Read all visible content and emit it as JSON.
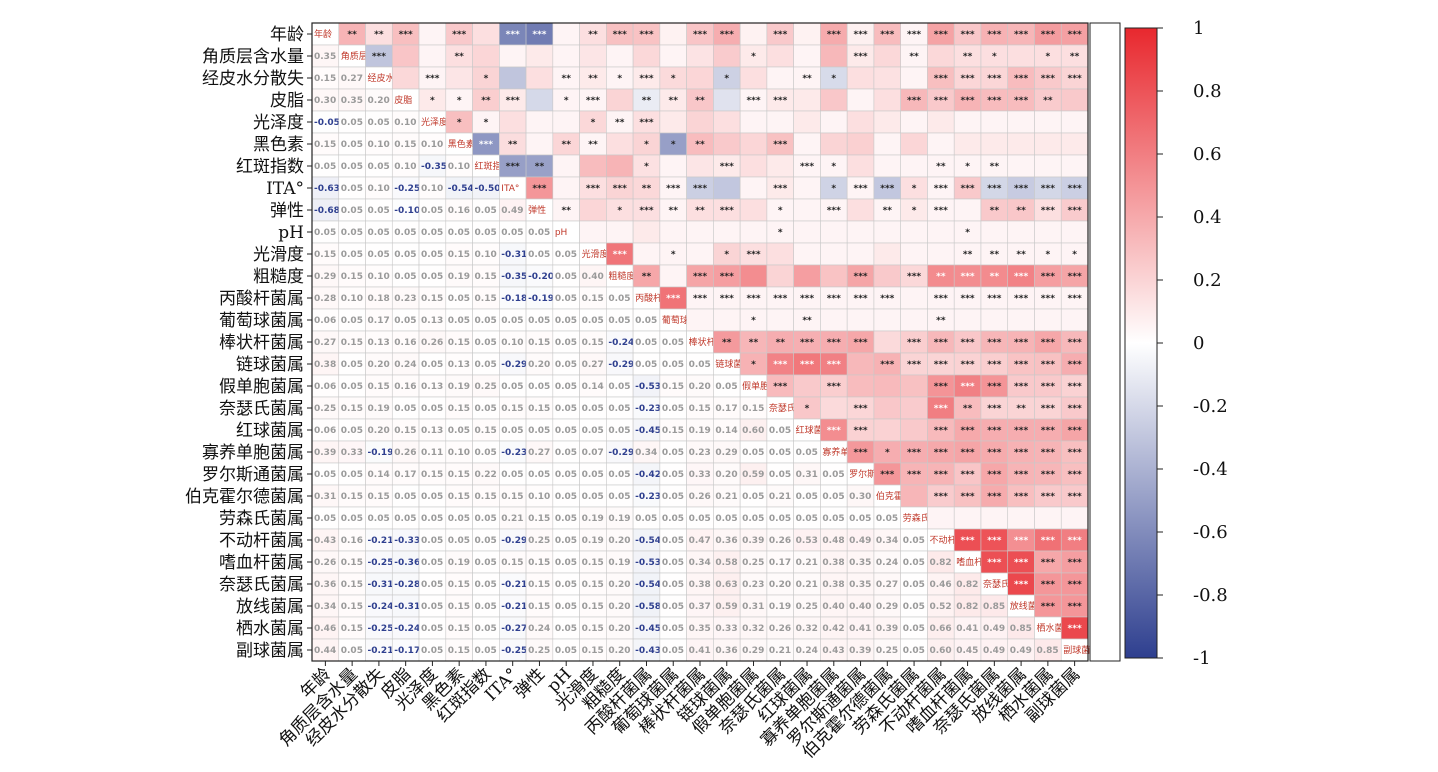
{
  "chart_data": {
    "type": "heatmap",
    "title": "",
    "variables": [
      "年龄",
      "角质层含水量",
      "经皮水分散失",
      "皮脂",
      "光泽度",
      "黑色素",
      "红斑指数",
      "ITA°",
      "弹性",
      "pH",
      "光滑度",
      "粗糙度",
      "丙酸杆菌属",
      "葡萄球菌属",
      "棒状杆菌属",
      "链球菌属",
      "假单胞菌属",
      "奈瑟氏菌属",
      "红球菌属",
      "寡养单胞菌属",
      "罗尔斯通菌属",
      "伯克霍尔德菌属",
      "劳森氏菌属",
      "不动杆菌属",
      "嗜血杆菌属",
      "奈瑟氏菌属",
      "放线菌属",
      "栖水菌属",
      "副球菌属"
    ],
    "colorbar": {
      "range": [
        -1,
        1
      ],
      "ticks": [
        "1",
        "0.8",
        "0.6",
        "0.4",
        "0.2",
        "0",
        "-0.2",
        "-0.4",
        "-0.6",
        "-0.8",
        "-1"
      ],
      "colors": {
        "negative": "#2e3f8f",
        "zero": "#ffffff",
        "positive": "#e8282e"
      }
    },
    "upper_triangle_values": [
      [
        0.35,
        0.15,
        0.3,
        0.05,
        0.25,
        0.15,
        -0.63,
        -0.68,
        0.05,
        0.15,
        0.29,
        0.28,
        0.06,
        0.27,
        0.38,
        0.06,
        0.25,
        0.06,
        0.39,
        0.07,
        0.31,
        0.05,
        0.43,
        0.26,
        0.36,
        0.34,
        0.46,
        0.44
      ],
      [
        -0.3,
        0.27,
        0.05,
        0.15,
        0.19,
        0.05,
        0.1,
        0.05,
        0.12,
        0.05,
        0.18,
        0.05,
        0.13,
        0.24,
        0.1,
        0.15,
        0.05,
        0.33,
        0.1,
        0.18,
        0.05,
        0.18,
        0.15,
        0.15,
        0.15,
        0.15,
        0.15
      ],
      [
        0.18,
        0.05,
        0.12,
        0.2,
        -0.3,
        0.15,
        0.05,
        0.1,
        0.05,
        0.1,
        0.17,
        0.19,
        -0.24,
        0.15,
        0.05,
        0.05,
        -0.19,
        0.15,
        0.14,
        0.05,
        0.3,
        0.19,
        0.19,
        0.31,
        0.25,
        0.2
      ],
      [
        0.1,
        0.05,
        0.23,
        0.1,
        -0.2,
        0.05,
        0.05,
        0.2,
        -0.1,
        0.1,
        0.26,
        -0.15,
        0.05,
        0.1,
        0.1,
        0.26,
        0.05,
        0.15,
        0.33,
        0.25,
        0.35,
        0.31,
        0.31,
        0.24,
        0.25
      ],
      [
        0.3,
        0.05,
        0.15,
        0.05,
        0.05,
        0.18,
        0.05,
        0.15,
        0.1,
        0.2,
        0.15,
        0.05,
        0.05,
        0.1,
        0.05,
        0.15,
        0.1,
        0.05,
        0.1,
        0.05,
        0.05,
        0.05,
        0.05,
        0.05
      ],
      [
        -0.54,
        0.16,
        0.05,
        0.19,
        0.05,
        0.15,
        0.2,
        -0.5,
        0.31,
        0.25,
        0.19,
        0.29,
        0.05,
        0.2,
        0.22,
        0.05,
        0.19,
        0.05,
        0.1,
        0.1,
        0.1,
        0.1,
        0.1
      ],
      [
        -0.5,
        -0.49,
        0.05,
        0.31,
        0.35,
        0.14,
        0.05,
        0.12,
        0.1,
        0.15,
        0.1,
        0.05,
        0.05,
        0.15,
        0.05,
        0.05,
        0.05,
        0.05,
        0.05,
        0.05,
        0.05,
        0.05
      ],
      [
        0.49,
        0.05,
        0.15,
        0.2,
        0.18,
        0.05,
        -0.25,
        -0.29,
        0.05,
        0.1,
        0.05,
        -0.23,
        0.05,
        -0.29,
        0.15,
        0.05,
        0.25,
        -0.21,
        -0.27,
        -0.21,
        -0.25,
        -0.25
      ],
      [
        0.05,
        0.19,
        0.15,
        0.15,
        0.05,
        0.15,
        0.15,
        0.15,
        0.05,
        0.05,
        0.05,
        0.15,
        0.05,
        0.1,
        0.05,
        0.05,
        0.25,
        0.26,
        0.15,
        0.24,
        0.05
      ],
      [
        0.05,
        0.05,
        0.1,
        0.05,
        0.05,
        0.05,
        0.05,
        0.05,
        0.05,
        0.05,
        0.05,
        0.05,
        0.05,
        0.05,
        0.05,
        0.05,
        0.05,
        0.05,
        0.05,
        0.05
      ],
      [
        0.64,
        0.05,
        0.05,
        0.05,
        0.2,
        0.15,
        0.15,
        0.05,
        0.05,
        0.05,
        0.1,
        0.05,
        0.05,
        0.05,
        0.05,
        0.05,
        0.05,
        0.05,
        0.05
      ],
      [
        0.41,
        0.05,
        0.42,
        0.45,
        0.53,
        0.2,
        0.45,
        0.28,
        0.42,
        0.25,
        0.18,
        0.54,
        0.53,
        0.54,
        0.58,
        0.45,
        0.42
      ],
      [
        0.65,
        0.05,
        0.05,
        0.05,
        0.05,
        0.05,
        0.05,
        0.05,
        0.05,
        0.05,
        0.05,
        0.05,
        0.05,
        0.05,
        0.05,
        0.05
      ],
      [
        0.05,
        0.05,
        0.05,
        0.05,
        0.05,
        0.05,
        0.05,
        0.05,
        0.05,
        0.05,
        0.05,
        0.05,
        0.05,
        0.05,
        0.05
      ],
      [
        0.47,
        0.34,
        0.38,
        0.37,
        0.38,
        0.41,
        0.17,
        0.23,
        0.33,
        0.26,
        0.34,
        0.35,
        0.41,
        0.33,
        0.31
      ],
      [
        0.36,
        0.58,
        0.63,
        0.59,
        0.33,
        0.36,
        0.2,
        0.2,
        0.21,
        0.23,
        0.28,
        0.29,
        0.38,
        0.21,
        0.23
      ],
      [
        0.32,
        0.25,
        0.23,
        0.31,
        0.32,
        0.29,
        0.5,
        0.59,
        0.5,
        0.25,
        0.25,
        0.21,
        0.21,
        0.2
      ],
      [
        0.26,
        0.17,
        0.19,
        0.26,
        0.24,
        0.6,
        0.31,
        0.2,
        0.2,
        0.2,
        0.25,
        0.24,
        0.25
      ],
      [
        0.53,
        0.21,
        0.21,
        0.25,
        0.32,
        0.4,
        0.38,
        0.38,
        0.38,
        0.42,
        0.43
      ],
      [
        0.48,
        0.38,
        0.38,
        0.4,
        0.42,
        0.39,
        0.36,
        0.35,
        0.3,
        0.3
      ],
      [
        0.49,
        0.35,
        0.35,
        0.27,
        0.41,
        0.35,
        0.34,
        0.3,
        0.25
      ],
      [
        0.34,
        0.24,
        0.29,
        0.39,
        0.3,
        0.25,
        0.25,
        0.24
      ],
      [
        0.05,
        0.05,
        0.05,
        0.05,
        0.05,
        0.05,
        0.05
      ],
      [
        0.82,
        0.8,
        0.52,
        0.66,
        0.6,
        0.6
      ],
      [
        0.82,
        0.82,
        0.41,
        0.45,
        0.45
      ],
      [
        0.85,
        0.49,
        0.49,
        0.49
      ],
      [
        0.49,
        0.49,
        0.49
      ],
      [
        0.85,
        0.85
      ],
      [
        0.85
      ]
    ],
    "lower_triangle_values": [
      [
        0.35
      ],
      [
        0.15,
        0.27
      ],
      [
        0.3,
        0.35,
        0.2
      ],
      [
        -0.05,
        0.05,
        0.05,
        0.1
      ],
      [
        0.15,
        0.05,
        0.1,
        0.15,
        0.1
      ],
      [
        0.05,
        0.05,
        0.05,
        0.1,
        -0.35,
        0.1
      ],
      [
        -0.63,
        0.05,
        0.1,
        -0.25,
        0.1,
        -0.54,
        -0.5
      ],
      [
        -0.68,
        0.05,
        0.05,
        -0.1,
        0.05,
        0.16,
        0.05,
        0.49
      ],
      [
        0.05,
        0.05,
        0.05,
        0.05,
        0.05,
        0.05,
        0.05,
        0.05,
        0.05
      ],
      [
        0.15,
        0.05,
        0.05,
        0.05,
        0.05,
        0.15,
        0.1,
        -0.31,
        0.05,
        0.05
      ],
      [
        0.29,
        0.15,
        0.1,
        0.05,
        0.05,
        0.19,
        0.15,
        -0.35,
        -0.2,
        0.05,
        0.4
      ],
      [
        0.28,
        0.1,
        0.18,
        0.23,
        0.15,
        0.05,
        0.15,
        -0.18,
        -0.19,
        0.05,
        0.15,
        0.05
      ],
      [
        0.06,
        0.05,
        0.17,
        0.05,
        0.13,
        0.05,
        0.05,
        0.05,
        0.05,
        0.05,
        0.05,
        0.05,
        0.05
      ],
      [
        0.27,
        0.15,
        0.13,
        0.16,
        0.26,
        0.15,
        0.05,
        0.1,
        0.15,
        0.05,
        0.15,
        -0.24,
        0.05,
        0.05
      ],
      [
        0.38,
        0.05,
        0.2,
        0.24,
        0.05,
        0.13,
        0.05,
        -0.29,
        0.2,
        0.05,
        0.27,
        -0.29,
        0.05,
        0.05,
        0.05
      ],
      [
        0.06,
        0.05,
        0.15,
        0.16,
        0.13,
        0.19,
        0.25,
        0.05,
        0.05,
        0.05,
        0.14,
        0.05,
        -0.53,
        0.15,
        0.2,
        0.05
      ],
      [
        0.25,
        0.15,
        0.19,
        0.05,
        0.05,
        0.15,
        0.05,
        0.15,
        0.15,
        0.05,
        0.05,
        0.05,
        -0.23,
        0.05,
        0.15,
        0.17,
        0.15
      ],
      [
        0.06,
        0.05,
        0.2,
        0.15,
        0.13,
        0.05,
        0.15,
        0.05,
        0.05,
        0.05,
        0.05,
        0.05,
        -0.45,
        0.15,
        0.19,
        0.14,
        0.6,
        0.05
      ],
      [
        0.39,
        0.33,
        -0.19,
        0.26,
        0.11,
        0.1,
        0.05,
        -0.23,
        0.27,
        0.05,
        0.07,
        -0.29,
        0.34,
        0.05,
        0.23,
        0.29,
        0.05,
        0.05,
        0.05
      ],
      [
        0.05,
        0.05,
        0.14,
        0.17,
        0.15,
        0.15,
        0.22,
        0.05,
        0.05,
        0.05,
        0.05,
        0.05,
        -0.42,
        0.05,
        0.33,
        0.2,
        0.59,
        0.05,
        0.31,
        0.05
      ],
      [
        0.31,
        0.15,
        0.15,
        0.05,
        0.05,
        0.15,
        0.15,
        0.15,
        0.1,
        0.05,
        0.05,
        0.05,
        -0.23,
        0.05,
        0.26,
        0.21,
        0.05,
        0.21,
        0.05,
        0.05,
        0.3
      ],
      [
        0.05,
        0.05,
        0.05,
        0.05,
        0.05,
        0.05,
        0.05,
        0.21,
        0.15,
        0.05,
        0.19,
        0.19,
        0.05,
        0.05,
        0.05,
        0.05,
        0.05,
        0.05,
        0.05,
        0.05,
        0.05,
        0.05
      ],
      [
        0.43,
        0.16,
        -0.21,
        -0.33,
        0.05,
        0.05,
        0.05,
        -0.29,
        0.25,
        0.05,
        0.19,
        0.2,
        -0.54,
        0.05,
        0.47,
        0.36,
        0.39,
        0.26,
        0.53,
        0.48,
        0.49,
        0.34,
        0.05
      ],
      [
        0.26,
        0.15,
        -0.25,
        -0.36,
        0.05,
        0.19,
        0.05,
        0.15,
        0.15,
        0.05,
        0.15,
        0.19,
        -0.53,
        0.05,
        0.34,
        0.58,
        0.25,
        0.17,
        0.21,
        0.38,
        0.35,
        0.24,
        0.05,
        0.82
      ],
      [
        0.36,
        0.15,
        -0.31,
        -0.28,
        0.05,
        0.15,
        0.05,
        -0.21,
        0.15,
        0.05,
        0.15,
        0.2,
        -0.54,
        0.05,
        0.38,
        0.63,
        0.23,
        0.2,
        0.21,
        0.38,
        0.35,
        0.27,
        0.05,
        0.46,
        0.82
      ],
      [
        0.34,
        0.15,
        -0.24,
        -0.31,
        0.05,
        0.15,
        0.05,
        -0.21,
        0.15,
        0.05,
        0.15,
        0.2,
        -0.58,
        0.05,
        0.37,
        0.59,
        0.31,
        0.19,
        0.25,
        0.4,
        0.4,
        0.29,
        0.05,
        0.52,
        0.82,
        0.85
      ],
      [
        0.46,
        0.15,
        -0.25,
        -0.24,
        0.05,
        0.15,
        0.05,
        -0.27,
        0.24,
        0.05,
        0.15,
        0.2,
        -0.45,
        0.05,
        0.35,
        0.33,
        0.32,
        0.26,
        0.32,
        0.42,
        0.41,
        0.39,
        0.05,
        0.66,
        0.41,
        0.49,
        0.85
      ],
      [
        0.44,
        0.05,
        -0.21,
        -0.17,
        0.05,
        0.15,
        0.05,
        -0.25,
        0.25,
        0.05,
        0.15,
        0.2,
        -0.43,
        0.05,
        0.41,
        0.36,
        0.29,
        0.21,
        0.24,
        0.43,
        0.39,
        0.25,
        0.05,
        0.6,
        0.45,
        0.49,
        0.49,
        0.85
      ]
    ],
    "significance_marks_upper": [
      [
        "**",
        "**",
        "***",
        "",
        "***",
        "",
        "***",
        "***",
        "",
        "**",
        "***",
        "***",
        "",
        "***",
        "***",
        "",
        "***",
        "",
        "***",
        "***",
        "***",
        "***",
        "***",
        "***",
        "***",
        "***",
        "***",
        "***"
      ],
      [
        "***",
        "",
        "",
        "**",
        "",
        "",
        "",
        "",
        "",
        "",
        "",
        "",
        "",
        "",
        "*",
        "",
        "",
        "",
        "***",
        "",
        "**",
        "",
        "**",
        "*",
        "",
        "*",
        "**",
        ""
      ],
      [
        "",
        "***",
        "",
        "*",
        "",
        "",
        "**",
        "**",
        "*",
        "***",
        "*",
        "",
        "*",
        "",
        "",
        "**",
        "*",
        "",
        "",
        "",
        "***",
        "***",
        "***",
        "***",
        "***",
        "***"
      ],
      [
        "*",
        "*",
        "**",
        "***",
        "",
        "*",
        "***",
        "",
        "**",
        "**",
        "**",
        "",
        "***",
        "***",
        "",
        "",
        "",
        "",
        "***",
        "***",
        "***",
        "***",
        "***",
        "**"
      ],
      [
        "*",
        "*",
        "",
        "",
        "",
        "*",
        "**",
        "***",
        "",
        "",
        "",
        "",
        "",
        "",
        "",
        "",
        "",
        "",
        "",
        "",
        "",
        "",
        "",
        ""
      ],
      [
        "***",
        "**",
        "",
        "**",
        "**",
        "",
        "*",
        "*",
        "**",
        "",
        "",
        "***",
        "",
        "",
        "",
        "",
        "",
        "",
        "",
        "",
        "",
        "",
        ""
      ],
      [
        "***",
        "**",
        "",
        "",
        "",
        "*",
        "",
        "",
        "***",
        "",
        "",
        "***",
        "*",
        "",
        "",
        "",
        "**",
        "*",
        "**",
        "",
        "",
        ""
      ],
      [
        "***",
        "",
        "***",
        "***",
        "**",
        "***",
        "***",
        "",
        "",
        "***",
        "",
        "*",
        "***",
        "***",
        "*",
        "***",
        "***",
        "***",
        "***",
        "***",
        "***"
      ],
      [
        "**",
        "",
        "*",
        "***",
        "**",
        "**",
        "***",
        "",
        "*",
        "",
        "***",
        "",
        "**",
        "*",
        "***",
        "",
        "**",
        "**",
        "***",
        "***"
      ],
      [
        "",
        "",
        "",
        "",
        "",
        "",
        "",
        "*",
        "",
        "",
        "",
        "",
        "",
        "",
        "*",
        "",
        "",
        "",
        "",
        ""
      ],
      [
        "***",
        "",
        "*",
        "",
        "*",
        "***",
        "",
        "",
        "",
        "",
        "",
        "",
        "",
        "**",
        "**",
        "**",
        "*",
        "*",
        ""
      ],
      [
        "**",
        "",
        "***",
        "***",
        "",
        "",
        "",
        "",
        "***",
        "",
        "***",
        "**",
        "***",
        "**",
        "***",
        "***",
        "***",
        "***"
      ],
      [
        "***",
        "***",
        "***",
        "***",
        "***",
        "***",
        "***",
        "***",
        "***",
        "",
        "***",
        "***",
        "***",
        "***",
        "***",
        "***",
        "***"
      ],
      [
        "",
        "",
        "*",
        "",
        "**",
        "",
        "",
        "",
        "",
        "**",
        "",
        "",
        "",
        "",
        "",
        ""
      ],
      [
        "**",
        "**",
        "**",
        "***",
        "***",
        "***",
        "",
        "***",
        "***",
        "***",
        "***",
        "***",
        "***",
        "***",
        "***"
      ],
      [
        "*",
        "***",
        "***",
        "***",
        "",
        "***",
        "***",
        "***",
        "***",
        "***",
        "***",
        "***",
        "***",
        "***"
      ],
      [
        "***",
        "",
        "***",
        "",
        "",
        "",
        "***",
        "***",
        "***",
        "***",
        "***",
        "***",
        "***"
      ],
      [
        "*",
        "",
        "***",
        "",
        "",
        "***",
        "**",
        "***",
        "**",
        "***",
        "***",
        "***"
      ],
      [
        "***",
        "***",
        "",
        "",
        "***",
        "***",
        "***",
        "***",
        "***",
        "***",
        "***"
      ],
      [
        "***",
        "*",
        "***",
        "***",
        "***",
        "***",
        "***",
        "***",
        "***",
        "***"
      ],
      [
        "***",
        "***",
        "***",
        "***",
        "***",
        "***",
        "***",
        "***",
        "***"
      ],
      [
        "",
        "***",
        "***",
        "***",
        "***",
        "***",
        "***",
        "***"
      ],
      [
        "",
        "",
        "",
        "",
        "",
        "",
        ""
      ],
      [
        "***",
        "***",
        "***",
        "***",
        "***",
        "***"
      ],
      [
        "***",
        "***",
        "***",
        "***",
        "***"
      ],
      [
        "***",
        "***",
        "***",
        "***"
      ],
      [
        "***",
        "***",
        "***"
      ],
      [
        "***",
        "***"
      ],
      [
        "***"
      ]
    ]
  }
}
